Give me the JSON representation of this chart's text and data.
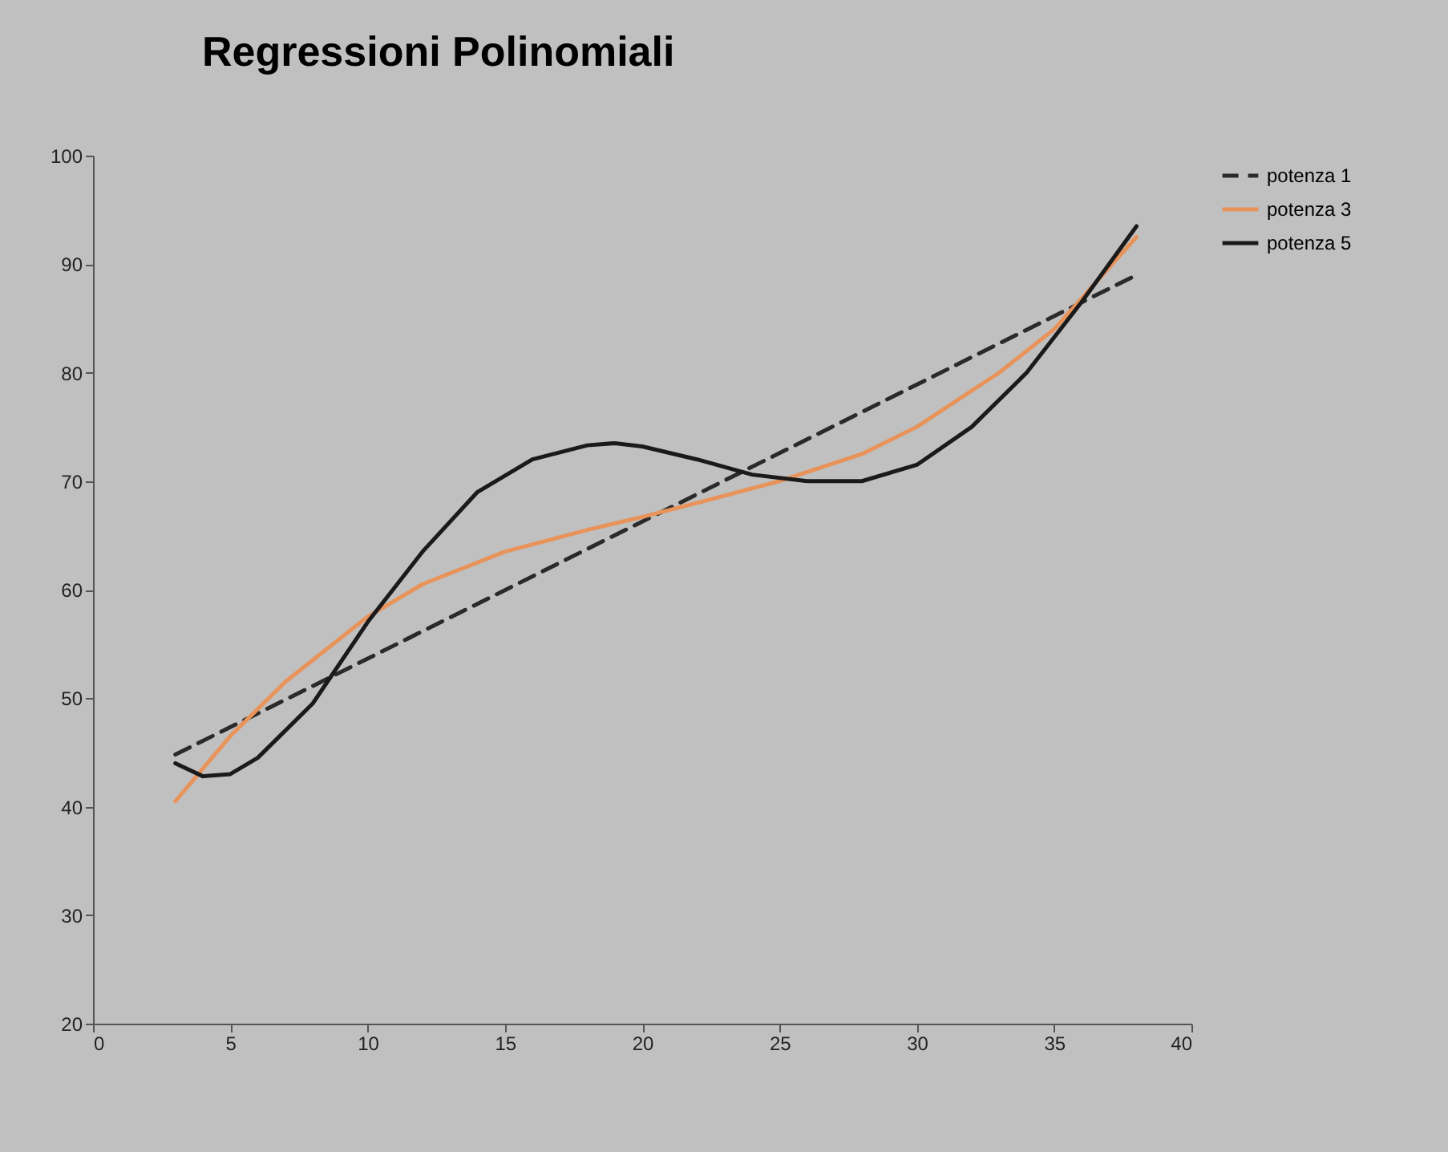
{
  "chart_data": {
    "type": "line",
    "title": "Regressioni Polinomiali",
    "xlim": [
      0,
      40
    ],
    "xticks": [
      0,
      5,
      10,
      15,
      20,
      25,
      30,
      35,
      40
    ],
    "ylim": [
      20,
      100
    ],
    "yticks": [
      20,
      30,
      40,
      50,
      60,
      70,
      80,
      90,
      100
    ],
    "legend": "right",
    "series": [
      {
        "name": "potenza 1",
        "color": "#2a2a2a",
        "line_style": "dashed",
        "x": [
          3,
          38
        ],
        "values": [
          44.8,
          89
        ]
      },
      {
        "name": "potenza 3",
        "color": "#e8935a",
        "line_style": "solid",
        "x": [
          3,
          5,
          7,
          10,
          12,
          15,
          18,
          20,
          22,
          25,
          28,
          30,
          33,
          35,
          38
        ],
        "values": [
          40.5,
          46.5,
          51.5,
          57.5,
          60.5,
          63.5,
          65.5,
          66.7,
          68,
          70,
          72.5,
          75,
          80,
          84,
          92.5
        ]
      },
      {
        "name": "potenza 5",
        "color": "#1a1a1a",
        "line_style": "solid",
        "x": [
          3,
          4,
          5,
          6,
          8,
          10,
          12,
          14,
          16,
          18,
          19,
          20,
          22,
          24,
          26,
          28,
          30,
          32,
          34,
          36,
          38
        ],
        "values": [
          44,
          42.8,
          43,
          44.5,
          49.5,
          57,
          63.5,
          69,
          72,
          73.3,
          73.5,
          73.2,
          72,
          70.6,
          70,
          70,
          71.5,
          75,
          80,
          86.5,
          93.5
        ]
      }
    ]
  }
}
